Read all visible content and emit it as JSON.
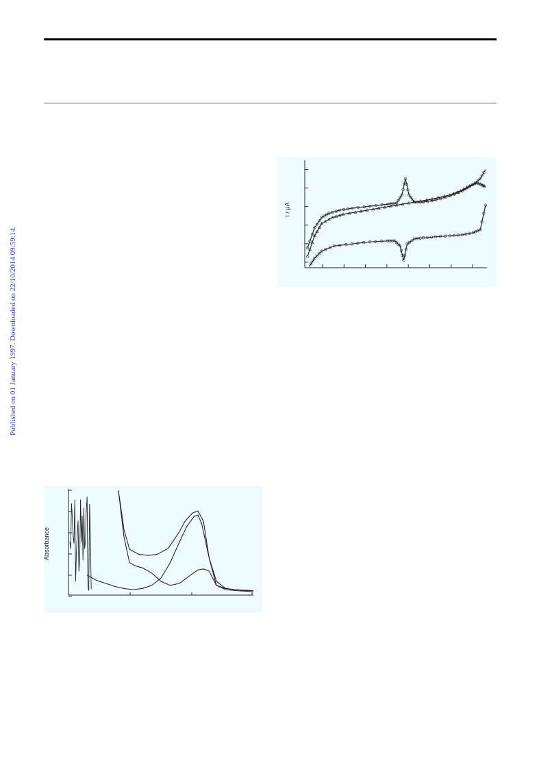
{
  "side_note": "Published on 01 January 1997. Downloaded on 22/10/2014 09:59:14.",
  "colors": {
    "figure_bg": "#effcff",
    "link": "#2a3cc9"
  },
  "figures": {
    "cv": {
      "ylabel": "I / μA"
    },
    "absorbance": {
      "ylabel": "Absorbance"
    }
  },
  "chart_data": [
    {
      "type": "line",
      "name": "cyclic-voltammogram",
      "xlabel": "",
      "ylabel": "I / μA",
      "grid": false,
      "series": [
        {
          "x": [
            0.0,
            0.04,
            0.08,
            0.12,
            0.18,
            0.25,
            0.35,
            0.45,
            0.5,
            0.53,
            0.55,
            0.57,
            0.6,
            0.65,
            0.72,
            0.8,
            0.87,
            0.93,
            0.97,
            1.0
          ],
          "y": [
            0.18,
            0.38,
            0.48,
            0.52,
            0.55,
            0.57,
            0.59,
            0.61,
            0.62,
            0.7,
            0.86,
            0.7,
            0.63,
            0.63,
            0.65,
            0.69,
            0.74,
            0.8,
            0.86,
            0.95
          ]
        },
        {
          "x": [
            1.0,
            0.97,
            0.93,
            0.87,
            0.8,
            0.72,
            0.65,
            0.6,
            0.56,
            0.54,
            0.52,
            0.49,
            0.45,
            0.35,
            0.25,
            0.15,
            0.08,
            0.04,
            0.01
          ],
          "y": [
            0.6,
            0.36,
            0.33,
            0.31,
            0.3,
            0.29,
            0.28,
            0.27,
            0.22,
            0.06,
            0.2,
            0.25,
            0.25,
            0.24,
            0.22,
            0.2,
            0.15,
            0.08,
            0.0
          ]
        },
        {
          "x": [
            0.0,
            0.04,
            0.08,
            0.14,
            0.2,
            0.3,
            0.4,
            0.5,
            0.6,
            0.7,
            0.8,
            0.86,
            0.91,
            0.95,
            0.98,
            1.0
          ],
          "y": [
            0.1,
            0.3,
            0.42,
            0.48,
            0.51,
            0.54,
            0.57,
            0.6,
            0.63,
            0.66,
            0.7,
            0.74,
            0.79,
            0.82,
            0.8,
            0.78
          ]
        }
      ]
    },
    {
      "type": "line",
      "name": "absorbance-spectrum",
      "xlabel": "",
      "ylabel": "Absorbance",
      "grid": false,
      "series": [
        {
          "x": [
            0.27,
            0.3,
            0.33,
            0.38,
            0.43,
            0.48,
            0.54,
            0.6,
            0.63,
            0.67,
            0.7,
            0.73,
            0.76,
            0.8,
            0.85,
            0.9,
            0.95,
            1.0
          ],
          "y": [
            1.0,
            0.62,
            0.43,
            0.38,
            0.37,
            0.38,
            0.44,
            0.6,
            0.7,
            0.78,
            0.8,
            0.7,
            0.35,
            0.08,
            0.05,
            0.04,
            0.03,
            0.03
          ]
        },
        {
          "x": [
            0.27,
            0.3,
            0.33,
            0.36,
            0.4,
            0.45,
            0.5,
            0.55,
            0.6,
            0.66,
            0.7,
            0.73,
            0.76,
            0.8,
            0.85,
            0.9,
            1.0
          ],
          "y": [
            1.0,
            0.55,
            0.3,
            0.27,
            0.25,
            0.2,
            0.12,
            0.08,
            0.1,
            0.18,
            0.23,
            0.24,
            0.22,
            0.08,
            0.04,
            0.03,
            0.02
          ]
        },
        {
          "x": [
            0.1,
            0.15,
            0.2,
            0.25,
            0.3,
            0.35,
            0.4,
            0.45,
            0.5,
            0.55,
            0.6,
            0.64,
            0.68,
            0.7,
            0.72,
            0.76,
            0.8,
            0.85,
            0.9,
            1.0
          ],
          "y": [
            0.18,
            0.13,
            0.1,
            0.07,
            0.05,
            0.04,
            0.05,
            0.08,
            0.15,
            0.3,
            0.5,
            0.65,
            0.75,
            0.76,
            0.68,
            0.35,
            0.12,
            0.05,
            0.04,
            0.03
          ]
        }
      ]
    }
  ]
}
